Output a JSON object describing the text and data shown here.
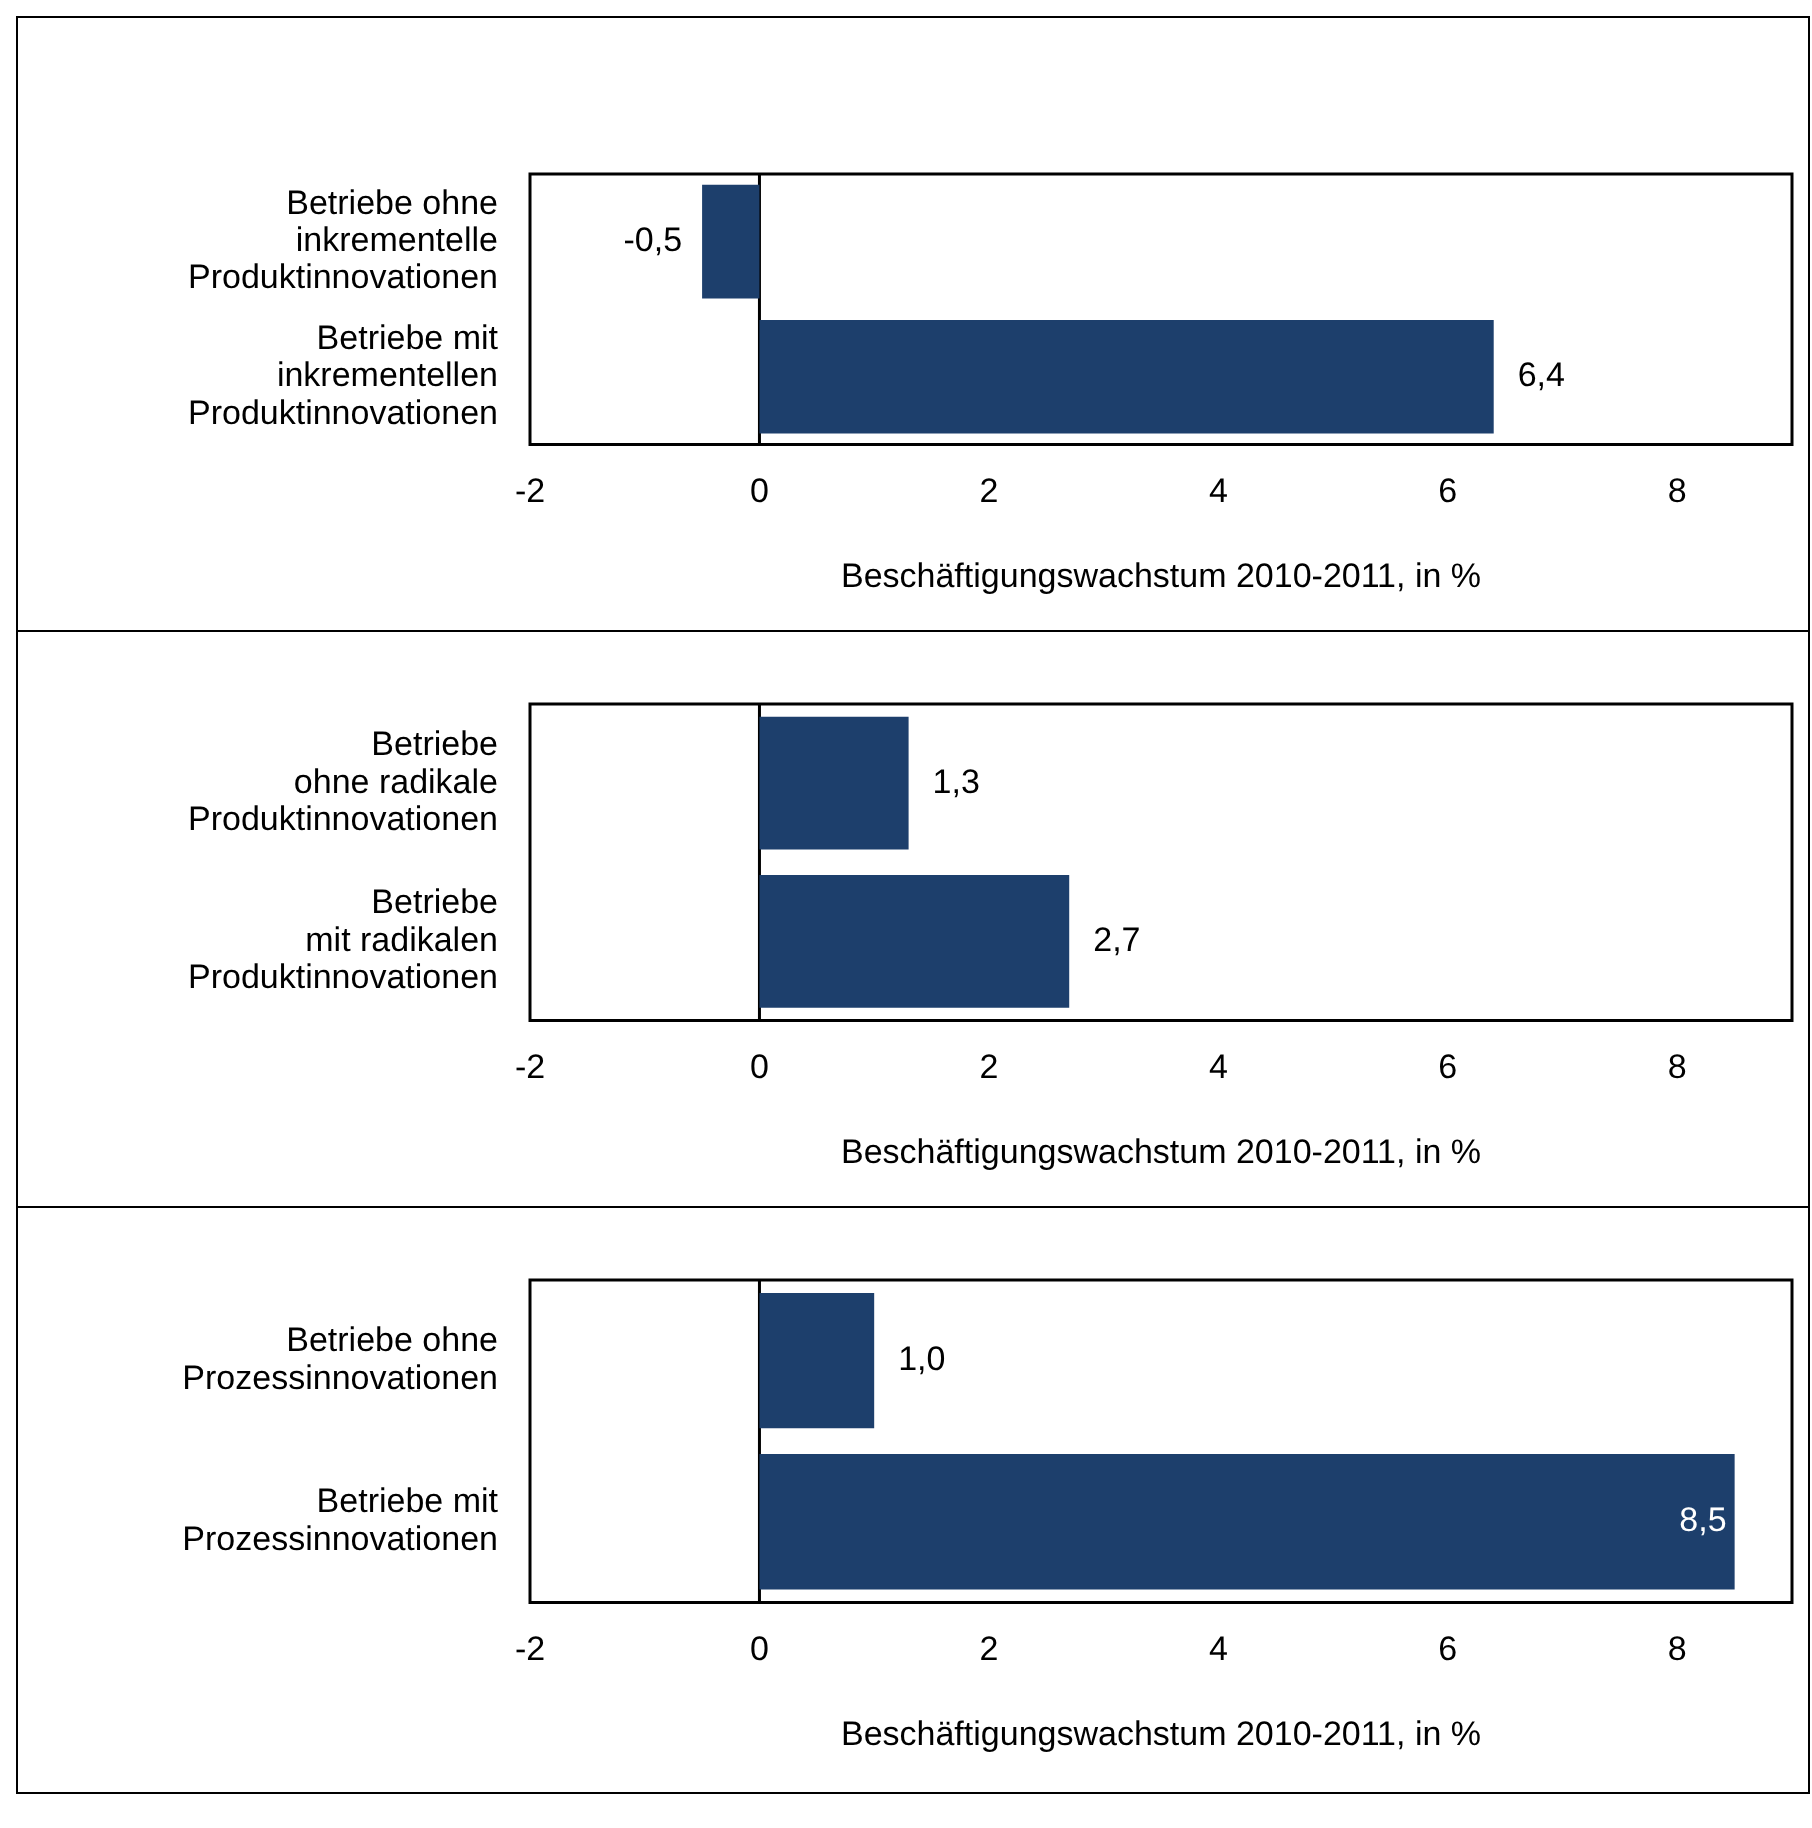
{
  "chart_data": [
    {
      "type": "bar",
      "orientation": "horizontal",
      "categories": [
        "Betriebe ohne\ninkrementelle\nProduktinnovationen",
        "Betriebe mit\ninkrementellen\nProduktinnovationen"
      ],
      "values": [
        -0.5,
        6.4
      ],
      "color": "#1d3f6c",
      "value_labels": [
        "-0,5",
        "6,4"
      ],
      "xlim": [
        -2,
        9
      ],
      "xticks": [
        -2,
        0,
        2,
        4,
        6,
        8
      ],
      "xlabel": "Beschäftigungswachstum 2010-2011, in %",
      "legend": false
    },
    {
      "type": "bar",
      "orientation": "horizontal",
      "categories": [
        "Betriebe\nohne radikale\nProduktinnovationen",
        "Betriebe\nmit radikalen\nProduktinnovationen"
      ],
      "values": [
        1.3,
        2.7
      ],
      "color": "#1d3f6c",
      "value_labels": [
        "1,3",
        "2,7"
      ],
      "xlim": [
        -2,
        9
      ],
      "xticks": [
        -2,
        0,
        2,
        4,
        6,
        8
      ],
      "xlabel": "Beschäftigungswachstum 2010-2011, in %",
      "legend": false
    },
    {
      "type": "bar",
      "orientation": "horizontal",
      "categories": [
        "Betriebe ohne\nProzessinnovationen",
        "Betriebe mit\nProzessinnovationen"
      ],
      "values": [
        1.0,
        8.5
      ],
      "color": "#1d3f6c",
      "value_labels": [
        "1,0",
        "8,5"
      ],
      "xlim": [
        -2,
        9
      ],
      "xticks": [
        -2,
        0,
        2,
        4,
        6,
        8
      ],
      "xlabel": "Beschäftigungswachstum 2010-2011, in %",
      "legend": false
    }
  ]
}
